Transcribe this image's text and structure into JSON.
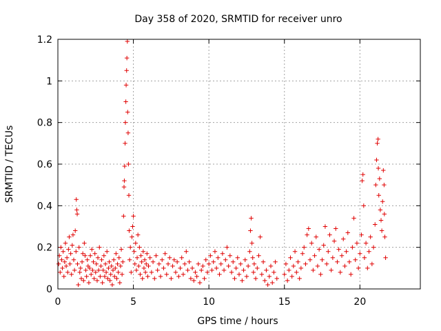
{
  "chart_data": {
    "type": "scatter",
    "title": "Day 358 of 2020, SRMTID for receiver unro",
    "xlabel": "GPS time / hours",
    "ylabel": "SRMTID / TECUs",
    "xlim": [
      0,
      24
    ],
    "ylim": [
      0,
      1.2
    ],
    "xticks": [
      0,
      5,
      10,
      15,
      20
    ],
    "yticks": [
      0,
      0.2,
      0.4,
      0.6,
      0.8,
      1,
      1.2
    ],
    "xtick_labels": [
      "0",
      "5",
      "10",
      "15",
      "20"
    ],
    "ytick_labels": [
      "0",
      "0.2",
      "0.4",
      "0.6",
      "0.8",
      "1",
      "1.2"
    ],
    "grid": true,
    "marker": "+",
    "color": "#e00000",
    "series": [
      {
        "name": "SRMTID",
        "points": [
          [
            0.05,
            0.12
          ],
          [
            0.1,
            0.16
          ],
          [
            0.15,
            0.08
          ],
          [
            0.2,
            0.2
          ],
          [
            0.25,
            0.14
          ],
          [
            0.3,
            0.1
          ],
          [
            0.35,
            0.18
          ],
          [
            0.4,
            0.06
          ],
          [
            0.45,
            0.13
          ],
          [
            0.5,
            0.22
          ],
          [
            0.55,
            0.11
          ],
          [
            0.6,
            0.15
          ],
          [
            0.65,
            0.08
          ],
          [
            0.7,
            0.19
          ],
          [
            0.75,
            0.25
          ],
          [
            0.8,
            0.12
          ],
          [
            0.85,
            0.17
          ],
          [
            0.9,
            0.07
          ],
          [
            0.95,
            0.21
          ],
          [
            1.0,
            0.26
          ],
          [
            1.05,
            0.14
          ],
          [
            1.1,
            0.09
          ],
          [
            1.15,
            0.28
          ],
          [
            1.2,
            0.18
          ],
          [
            1.22,
            0.43
          ],
          [
            1.25,
            0.38
          ],
          [
            1.28,
            0.36
          ],
          [
            1.3,
            0.12
          ],
          [
            1.35,
            0.02
          ],
          [
            1.4,
            0.2
          ],
          [
            1.45,
            0.08
          ],
          [
            1.5,
            0.1
          ],
          [
            1.55,
            0.05
          ],
          [
            1.6,
            0.13
          ],
          [
            1.65,
            0.17
          ],
          [
            1.7,
            0.04
          ],
          [
            1.75,
            0.22
          ],
          [
            1.8,
            0.16
          ],
          [
            1.85,
            0.09
          ],
          [
            1.9,
            0.06
          ],
          [
            1.95,
            0.14
          ],
          [
            2.0,
            0.11
          ],
          [
            2.05,
            0.03
          ],
          [
            2.1,
            0.1
          ],
          [
            2.15,
            0.16
          ],
          [
            2.2,
            0.07
          ],
          [
            2.25,
            0.19
          ],
          [
            2.3,
            0.09
          ],
          [
            2.35,
            0.13
          ],
          [
            2.4,
            0.05
          ],
          [
            2.45,
            0.17
          ],
          [
            2.5,
            0.08
          ],
          [
            2.55,
            0.12
          ],
          [
            2.6,
            0.04
          ],
          [
            2.65,
            0.15
          ],
          [
            2.7,
            0.09
          ],
          [
            2.75,
            0.2
          ],
          [
            2.8,
            0.06
          ],
          [
            2.85,
            0.11
          ],
          [
            2.9,
            0.14
          ],
          [
            2.95,
            0.03
          ],
          [
            3.0,
            0.09
          ],
          [
            3.05,
            0.16
          ],
          [
            3.1,
            0.06
          ],
          [
            3.15,
            0.12
          ],
          [
            3.2,
            0.08
          ],
          [
            3.25,
            0.18
          ],
          [
            3.3,
            0.05
          ],
          [
            3.35,
            0.1
          ],
          [
            3.4,
            0.13
          ],
          [
            3.45,
            0.04
          ],
          [
            3.5,
            0.07
          ],
          [
            3.55,
            0.11
          ],
          [
            3.6,
            0.02
          ],
          [
            3.65,
            0.09
          ],
          [
            3.7,
            0.14
          ],
          [
            3.75,
            0.06
          ],
          [
            3.8,
            0.1
          ],
          [
            3.85,
            0.17
          ],
          [
            3.9,
            0.05
          ],
          [
            3.95,
            0.12
          ],
          [
            4.0,
            0.08
          ],
          [
            4.05,
            0.15
          ],
          [
            4.1,
            0.03
          ],
          [
            4.15,
            0.11
          ],
          [
            4.2,
            0.19
          ],
          [
            4.25,
            0.07
          ],
          [
            4.3,
            0.13
          ],
          [
            4.35,
            0.35
          ],
          [
            4.38,
            0.49
          ],
          [
            4.4,
            0.52
          ],
          [
            4.42,
            0.59
          ],
          [
            4.45,
            0.7
          ],
          [
            4.47,
            0.8
          ],
          [
            4.5,
            0.9
          ],
          [
            4.52,
            0.98
          ],
          [
            4.55,
            1.05
          ],
          [
            4.57,
            1.11
          ],
          [
            4.6,
            1.19
          ],
          [
            4.62,
            0.85
          ],
          [
            4.65,
            0.75
          ],
          [
            4.67,
            0.6
          ],
          [
            4.7,
            0.45
          ],
          [
            4.72,
            0.28
          ],
          [
            4.75,
            0.14
          ],
          [
            4.8,
            0.2
          ],
          [
            4.85,
            0.08
          ],
          [
            4.9,
            0.25
          ],
          [
            4.95,
            0.3
          ],
          [
            5.0,
            0.35
          ],
          [
            5.05,
            0.18
          ],
          [
            5.1,
            0.12
          ],
          [
            5.15,
            0.22
          ],
          [
            5.2,
            0.09
          ],
          [
            5.25,
            0.15
          ],
          [
            5.3,
            0.26
          ],
          [
            5.35,
            0.11
          ],
          [
            5.4,
            0.2
          ],
          [
            5.45,
            0.07
          ],
          [
            5.5,
            0.16
          ],
          [
            5.55,
            0.13
          ],
          [
            5.6,
            0.05
          ],
          [
            5.65,
            0.18
          ],
          [
            5.7,
            0.1
          ],
          [
            5.75,
            0.14
          ],
          [
            5.8,
            0.08
          ],
          [
            5.85,
            0.12
          ],
          [
            5.9,
            0.17
          ],
          [
            5.95,
            0.06
          ],
          [
            6.0,
            0.11
          ],
          [
            6.1,
            0.15
          ],
          [
            6.2,
            0.08
          ],
          [
            6.3,
            0.13
          ],
          [
            6.4,
            0.05
          ],
          [
            6.5,
            0.16
          ],
          [
            6.6,
            0.09
          ],
          [
            6.7,
            0.12
          ],
          [
            6.8,
            0.06
          ],
          [
            6.9,
            0.14
          ],
          [
            7.0,
            0.1
          ],
          [
            7.1,
            0.17
          ],
          [
            7.2,
            0.07
          ],
          [
            7.3,
            0.12
          ],
          [
            7.4,
            0.15
          ],
          [
            7.5,
            0.05
          ],
          [
            7.6,
            0.11
          ],
          [
            7.7,
            0.14
          ],
          [
            7.8,
            0.08
          ],
          [
            7.9,
            0.13
          ],
          [
            8.0,
            0.06
          ],
          [
            8.1,
            0.1
          ],
          [
            8.2,
            0.15
          ],
          [
            8.3,
            0.07
          ],
          [
            8.4,
            0.12
          ],
          [
            8.5,
            0.18
          ],
          [
            8.6,
            0.09
          ],
          [
            8.7,
            0.13
          ],
          [
            8.8,
            0.05
          ],
          [
            8.9,
            0.1
          ],
          [
            9.0,
            0.04
          ],
          [
            9.1,
            0.08
          ],
          [
            9.2,
            0.06
          ],
          [
            9.3,
            0.12
          ],
          [
            9.4,
            0.03
          ],
          [
            9.5,
            0.09
          ],
          [
            9.6,
            0.11
          ],
          [
            9.7,
            0.05
          ],
          [
            9.8,
            0.14
          ],
          [
            9.9,
            0.08
          ],
          [
            10.0,
            0.12
          ],
          [
            10.1,
            0.16
          ],
          [
            10.2,
            0.09
          ],
          [
            10.3,
            0.13
          ],
          [
            10.4,
            0.18
          ],
          [
            10.5,
            0.1
          ],
          [
            10.6,
            0.15
          ],
          [
            10.7,
            0.07
          ],
          [
            10.8,
            0.12
          ],
          [
            10.9,
            0.17
          ],
          [
            11.0,
            0.09
          ],
          [
            11.1,
            0.14
          ],
          [
            11.2,
            0.2
          ],
          [
            11.3,
            0.11
          ],
          [
            11.4,
            0.16
          ],
          [
            11.5,
            0.08
          ],
          [
            11.6,
            0.13
          ],
          [
            11.7,
            0.05
          ],
          [
            11.8,
            0.1
          ],
          [
            11.9,
            0.15
          ],
          [
            12.0,
            0.07
          ],
          [
            12.1,
            0.12
          ],
          [
            12.2,
            0.04
          ],
          [
            12.3,
            0.09
          ],
          [
            12.4,
            0.14
          ],
          [
            12.5,
            0.06
          ],
          [
            12.6,
            0.11
          ],
          [
            12.7,
            0.18
          ],
          [
            12.75,
            0.28
          ],
          [
            12.8,
            0.34
          ],
          [
            12.85,
            0.22
          ],
          [
            12.9,
            0.15
          ],
          [
            12.95,
            0.08
          ],
          [
            13.0,
            0.12
          ],
          [
            13.1,
            0.05
          ],
          [
            13.2,
            0.1
          ],
          [
            13.3,
            0.16
          ],
          [
            13.4,
            0.25
          ],
          [
            13.5,
            0.07
          ],
          [
            13.6,
            0.13
          ],
          [
            13.7,
            0.04
          ],
          [
            13.8,
            0.09
          ],
          [
            13.9,
            0.02
          ],
          [
            14.0,
            0.06
          ],
          [
            14.1,
            0.11
          ],
          [
            14.2,
            0.03
          ],
          [
            14.3,
            0.08
          ],
          [
            14.4,
            0.13
          ],
          [
            14.5,
            0.05
          ],
          [
            15.0,
            0.07
          ],
          [
            15.1,
            0.12
          ],
          [
            15.2,
            0.04
          ],
          [
            15.3,
            0.09
          ],
          [
            15.4,
            0.15
          ],
          [
            15.5,
            0.06
          ],
          [
            15.6,
            0.11
          ],
          [
            15.7,
            0.18
          ],
          [
            15.8,
            0.08
          ],
          [
            15.9,
            0.13
          ],
          [
            16.0,
            0.05
          ],
          [
            16.1,
            0.1
          ],
          [
            16.2,
            0.17
          ],
          [
            16.3,
            0.2
          ],
          [
            16.4,
            0.12
          ],
          [
            16.5,
            0.26
          ],
          [
            16.6,
            0.29
          ],
          [
            16.7,
            0.14
          ],
          [
            16.8,
            0.22
          ],
          [
            16.9,
            0.09
          ],
          [
            17.0,
            0.16
          ],
          [
            17.1,
            0.25
          ],
          [
            17.2,
            0.11
          ],
          [
            17.3,
            0.19
          ],
          [
            17.4,
            0.07
          ],
          [
            17.5,
            0.14
          ],
          [
            17.6,
            0.21
          ],
          [
            17.7,
            0.3
          ],
          [
            17.8,
            0.12
          ],
          [
            17.9,
            0.18
          ],
          [
            18.0,
            0.26
          ],
          [
            18.1,
            0.09
          ],
          [
            18.2,
            0.15
          ],
          [
            18.3,
            0.23
          ],
          [
            18.4,
            0.29
          ],
          [
            18.5,
            0.13
          ],
          [
            18.6,
            0.19
          ],
          [
            18.7,
            0.08
          ],
          [
            18.8,
            0.16
          ],
          [
            18.9,
            0.24
          ],
          [
            19.0,
            0.11
          ],
          [
            19.1,
            0.18
          ],
          [
            19.2,
            0.27
          ],
          [
            19.3,
            0.13
          ],
          [
            19.4,
            0.07
          ],
          [
            19.5,
            0.2
          ],
          [
            19.6,
            0.34
          ],
          [
            19.7,
            0.14
          ],
          [
            19.8,
            0.22
          ],
          [
            19.9,
            0.1
          ],
          [
            20.0,
            0.17
          ],
          [
            20.1,
            0.26
          ],
          [
            20.15,
            0.52
          ],
          [
            20.2,
            0.55
          ],
          [
            20.25,
            0.4
          ],
          [
            20.3,
            0.15
          ],
          [
            20.4,
            0.22
          ],
          [
            20.5,
            0.1
          ],
          [
            20.6,
            0.18
          ],
          [
            20.7,
            0.25
          ],
          [
            20.8,
            0.12
          ],
          [
            20.9,
            0.2
          ],
          [
            21.0,
            0.31
          ],
          [
            21.05,
            0.5
          ],
          [
            21.1,
            0.62
          ],
          [
            21.15,
            0.7
          ],
          [
            21.2,
            0.72
          ],
          [
            21.22,
            0.58
          ],
          [
            21.25,
            0.45
          ],
          [
            21.3,
            0.53
          ],
          [
            21.35,
            0.38
          ],
          [
            21.4,
            0.33
          ],
          [
            21.45,
            0.28
          ],
          [
            21.5,
            0.42
          ],
          [
            21.55,
            0.57
          ],
          [
            21.6,
            0.5
          ],
          [
            21.62,
            0.36
          ],
          [
            21.65,
            0.25
          ],
          [
            21.7,
            0.15
          ]
        ]
      }
    ]
  }
}
